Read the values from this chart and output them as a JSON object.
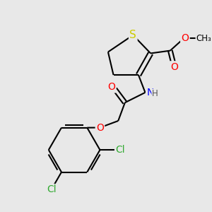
{
  "background_color": "#e8e8e8",
  "atom_colors": {
    "S": "#cccc00",
    "N": "#0000ff",
    "O": "#ff0000",
    "Cl": "#33aa33",
    "C": "#000000",
    "H": "#555555"
  },
  "bond_color": "#000000",
  "bond_width": 1.5,
  "figsize": [
    3.0,
    3.0
  ],
  "dpi": 100,
  "xlim": [
    0,
    300
  ],
  "ylim": [
    0,
    300
  ]
}
